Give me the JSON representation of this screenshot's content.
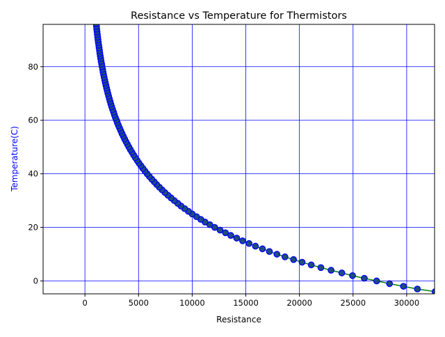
{
  "chart_data": {
    "type": "scatter",
    "title": "Resistance vs Temperature for Thermistors",
    "xlabel": "Resistance",
    "ylabel": "Temperature(C)",
    "xlim": [
      -3900,
      32600
    ],
    "ylim": [
      -4.8,
      95.8
    ],
    "x_ticks": [
      0,
      5000,
      10000,
      15000,
      20000,
      25000,
      30000
    ],
    "x_tick_labels": [
      "0",
      "5000",
      "10000",
      "15000",
      "20000",
      "25000",
      "30000"
    ],
    "y_ticks": [
      0,
      20,
      40,
      60,
      80
    ],
    "y_tick_labels": [
      "0",
      "20",
      "40",
      "60",
      "80"
    ],
    "grid": true,
    "colors": {
      "grid": "#0000ff",
      "ylabel": "#0000ff",
      "marker_edge": "#0000ff",
      "marker_face": "#1f4e79",
      "fit_line": "#008000"
    },
    "series": [
      {
        "kind": "points",
        "x": [
          32650,
          31000,
          29700,
          28400,
          27200,
          26050,
          24950,
          23950,
          22950,
          22000,
          21100,
          20250,
          19450,
          18650,
          17900,
          17200,
          16550,
          15900,
          15300,
          14700,
          14150,
          13600,
          13100,
          12600,
          12100,
          11650,
          11200,
          10800,
          10400,
          10000,
          9650,
          9300,
          8950,
          8650,
          8330,
          8030,
          7740,
          7460,
          7190,
          6940,
          6690,
          6460,
          6230,
          6010,
          5800,
          5600,
          5410,
          5220,
          5040,
          4870,
          4700,
          4540,
          4390,
          4240,
          4100,
          3960,
          3830,
          3700,
          3580,
          3460,
          3350,
          3240,
          3130,
          3030,
          2940,
          2840,
          2750,
          2670,
          2580,
          2500,
          2420,
          2350,
          2280,
          2210,
          2140,
          2080,
          2020,
          1960,
          1900,
          1850,
          1790,
          1740,
          1690,
          1650,
          1600,
          1560,
          1510,
          1470,
          1430,
          1390,
          1360,
          1320,
          1290,
          1250,
          1220,
          1190,
          1160,
          1130,
          1100,
          1080,
          1050
        ],
        "y": [
          -4,
          -3,
          -2,
          -1,
          0,
          1,
          2,
          3,
          4,
          5,
          6,
          7,
          8,
          9,
          10,
          11,
          12,
          13,
          14,
          15,
          16,
          17,
          18,
          19,
          20,
          21,
          22,
          23,
          24,
          25,
          26,
          27,
          28,
          29,
          30,
          31,
          32,
          33,
          34,
          35,
          36,
          37,
          38,
          39,
          40,
          41,
          42,
          43,
          44,
          45,
          46,
          47,
          48,
          49,
          50,
          51,
          52,
          53,
          54,
          55,
          56,
          57,
          58,
          59,
          60,
          61,
          62,
          63,
          64,
          65,
          66,
          67,
          68,
          69,
          70,
          71,
          72,
          73,
          74,
          75,
          76,
          77,
          78,
          79,
          80,
          81,
          82,
          83,
          84,
          85,
          86,
          87,
          88,
          89,
          90,
          91,
          92,
          93,
          94,
          95,
          96
        ]
      },
      {
        "kind": "line",
        "x": [
          32650,
          31000,
          29700,
          28400,
          27200,
          26050,
          24950,
          23950,
          22950,
          22000,
          21100,
          20250,
          19450,
          18650,
          17900,
          17200,
          16550,
          15900,
          15300,
          14700,
          14150,
          13600,
          13100,
          12600,
          12100,
          11650,
          11200,
          10800,
          10400,
          10000,
          9650,
          9300,
          8950,
          8650,
          8330,
          8030,
          7740,
          7460,
          7190,
          6940,
          6690,
          6460,
          6230,
          6010,
          5800,
          5600,
          5410,
          5220,
          5040,
          4870,
          4700,
          4540,
          4390,
          4240,
          4100,
          3960,
          3830,
          3700,
          3580,
          3460,
          3350,
          3240,
          3130,
          3030,
          2940,
          2840,
          2750,
          2670,
          2580,
          2500,
          2420,
          2350,
          2280,
          2210,
          2140,
          2080,
          2020,
          1960,
          1900,
          1850,
          1790,
          1740,
          1690,
          1650,
          1600,
          1560,
          1510,
          1470,
          1430,
          1390,
          1360,
          1320,
          1290,
          1250,
          1220,
          1190,
          1160,
          1130,
          1100,
          1080,
          1050
        ],
        "y": [
          -4,
          -3,
          -2,
          -1,
          0,
          1,
          2,
          3,
          4,
          5,
          6,
          7,
          8,
          9,
          10,
          11,
          12,
          13,
          14,
          15,
          16,
          17,
          18,
          19,
          20,
          21,
          22,
          23,
          24,
          25,
          26,
          27,
          28,
          29,
          30,
          31,
          32,
          33,
          34,
          35,
          36,
          37,
          38,
          39,
          40,
          41,
          42,
          43,
          44,
          45,
          46,
          47,
          48,
          49,
          50,
          51,
          52,
          53,
          54,
          55,
          56,
          57,
          58,
          59,
          60,
          61,
          62,
          63,
          64,
          65,
          66,
          67,
          68,
          69,
          70,
          71,
          72,
          73,
          74,
          75,
          76,
          77,
          78,
          79,
          80,
          81,
          82,
          83,
          84,
          85,
          86,
          87,
          88,
          89,
          90,
          91,
          92,
          93,
          94,
          95,
          96
        ]
      }
    ]
  }
}
